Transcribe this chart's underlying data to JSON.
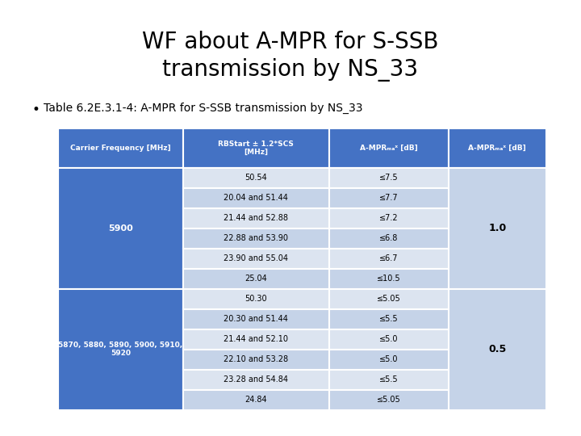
{
  "title": "WF about A-MPR for S-SSB\ntransmission by NS_33",
  "bullet": "Table 6.2E.3.1-4: A-MPR for S-SSB transmission by NS_33",
  "col_headers": [
    "Carrier Frequency [MHz]",
    "RBStart ± 1.2*SCS\n[MHz]",
    "A-MPRₘₐˣ [dB]",
    "A-MPRₘₐˣ [dB]"
  ],
  "header_bg": "#4472C4",
  "header_text": "#FFFFFF",
  "row_bg_dark": "#4472C4",
  "row_bg_light1": "#C5D3E8",
  "row_bg_light2": "#DCE4F0",
  "row_text_dark": "#FFFFFF",
  "row_text_light": "#000000",
  "group1_carrier": "5900",
  "group1_rows": [
    [
      "50.54",
      "≤7.5"
    ],
    [
      "20.04 and 51.44",
      "≤7.7"
    ],
    [
      "21.44 and 52.88",
      "≤7.2"
    ],
    [
      "22.88 and 53.90",
      "≤6.8"
    ],
    [
      "23.90 and 55.04",
      "≤6.7"
    ],
    [
      "25.04",
      "≤10.5"
    ]
  ],
  "group1_ampr2": "1.0",
  "group2_carrier": "5870, 5880, 5890, 5900, 5910,\n5920",
  "group2_rows": [
    [
      "50.30",
      "≤5.05"
    ],
    [
      "20.30 and 51.44",
      "≤5.5"
    ],
    [
      "21.44 and 52.10",
      "≤5.0"
    ],
    [
      "22.10 and 53.28",
      "≤5.0"
    ],
    [
      "23.28 and 54.84",
      "≤5.5"
    ],
    [
      "24.84",
      "≤5.05"
    ]
  ],
  "group2_ampr2": "0.5",
  "fig_bg": "#FFFFFF"
}
